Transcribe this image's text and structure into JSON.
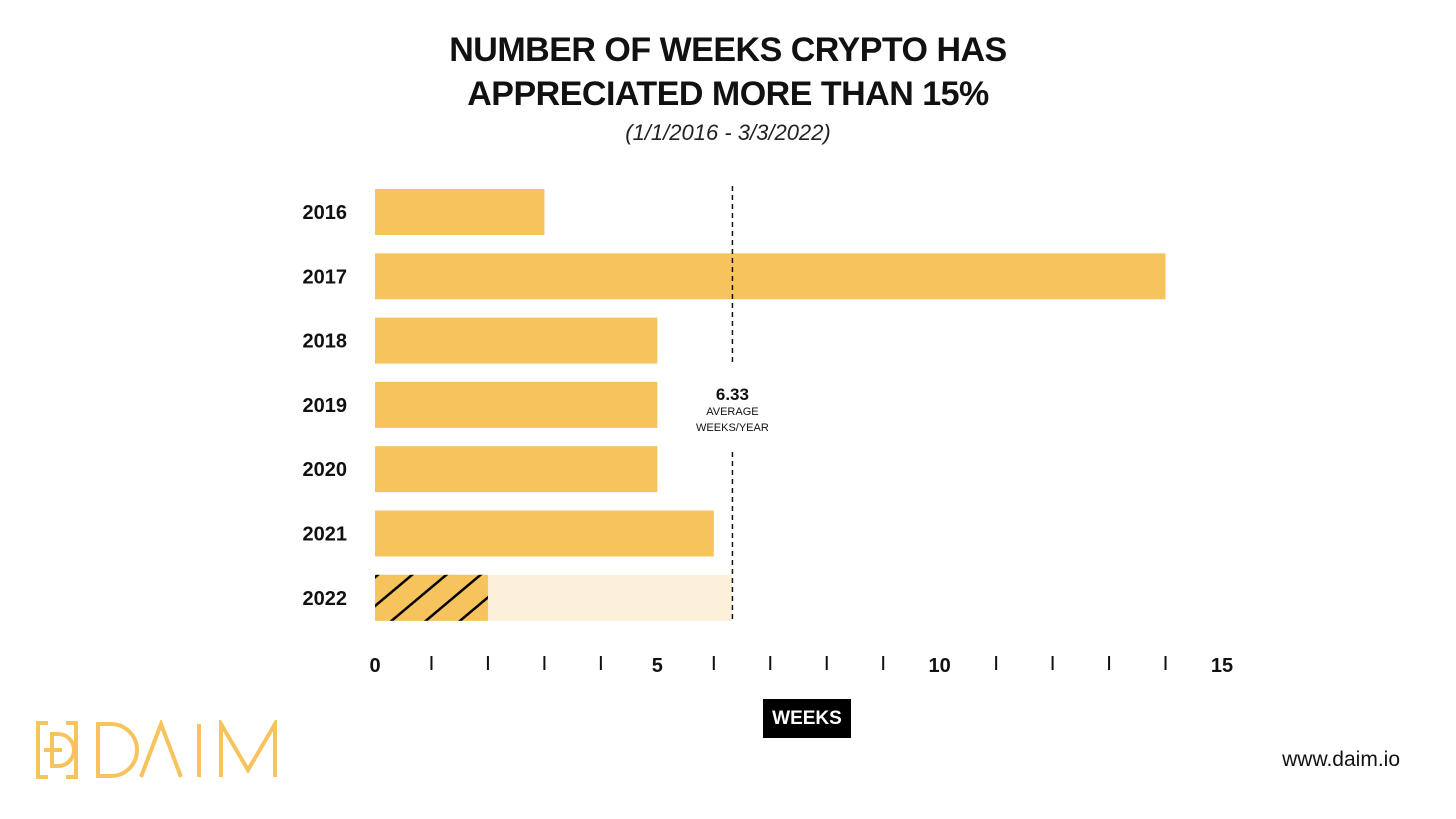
{
  "chart_data": {
    "type": "bar",
    "orientation": "horizontal",
    "title_line1": "NUMBER OF WEEKS CRYPTO HAS",
    "title_line2": "APPRECIATED MORE THAN 15%",
    "subtitle": "(1/1/2016 - 3/3/2022)",
    "categories": [
      "2016",
      "2017",
      "2018",
      "2019",
      "2020",
      "2021",
      "2022"
    ],
    "values": [
      3,
      14,
      5,
      5,
      5,
      6,
      2
    ],
    "projected_2022": 6.33,
    "average": 6.33,
    "average_value_label": "6.33",
    "average_label_line1": "AVERAGE",
    "average_label_line2": "WEEKS/YEAR",
    "xlabel": "WEEKS",
    "xlim": [
      0,
      15
    ],
    "xticks": [
      0,
      1,
      2,
      3,
      4,
      5,
      6,
      7,
      8,
      9,
      10,
      11,
      12,
      13,
      14,
      15
    ],
    "xtick_labels": {
      "0": "0",
      "5": "5",
      "10": "10",
      "15": "15"
    },
    "colors": {
      "bar": "#F7C35C",
      "projected": "#FDF0DA",
      "hatch": "#000000"
    }
  },
  "brand": {
    "logo_text": "DAIM",
    "url": "www.daim.io"
  }
}
